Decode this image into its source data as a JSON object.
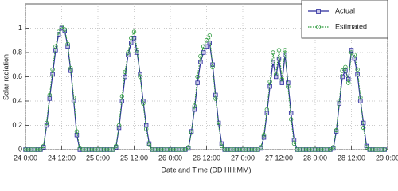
{
  "chart_data": {
    "type": "line",
    "xlabel": "Date and Time (DD HH:MM)",
    "ylabel": "Solar radiation",
    "x": [
      0,
      1,
      2,
      3,
      4,
      5,
      6,
      7,
      8,
      9,
      10,
      11,
      12,
      13,
      14,
      15,
      16,
      17,
      18,
      19,
      20,
      21,
      22,
      23,
      24,
      25,
      26,
      27,
      28,
      29,
      30,
      31,
      32,
      33,
      34,
      35,
      36,
      37,
      38,
      39,
      40,
      41,
      42,
      43,
      44,
      45,
      46,
      47,
      48,
      49,
      50,
      51,
      52,
      53,
      54,
      55,
      56,
      57,
      58,
      59,
      60,
      61,
      62,
      63,
      64,
      65,
      66,
      67,
      68,
      69,
      70,
      71,
      72,
      73,
      74,
      75,
      76,
      77,
      78,
      79,
      80,
      81,
      82,
      83,
      84,
      85,
      86,
      87,
      88,
      89,
      90,
      91,
      92,
      93,
      94,
      95,
      96,
      97,
      98,
      99,
      100,
      101,
      102,
      103,
      104,
      105,
      106,
      107,
      108,
      109,
      110,
      111,
      112,
      113,
      114,
      115,
      116,
      117,
      118,
      119
    ],
    "series": [
      {
        "name": "Actual",
        "color": "#2b2b9c",
        "marker": "square",
        "dash": "solid",
        "values": [
          0,
          0,
          0,
          0,
          0,
          0,
          0.02,
          0.2,
          0.42,
          0.62,
          0.82,
          0.95,
          1.0,
          0.98,
          0.85,
          0.65,
          0.4,
          0.12,
          0,
          0,
          0,
          0,
          0,
          0,
          0,
          0,
          0,
          0,
          0,
          0,
          0.02,
          0.18,
          0.4,
          0.6,
          0.78,
          0.88,
          0.92,
          0.8,
          0.62,
          0.4,
          0.2,
          0.05,
          0,
          0,
          0,
          0,
          0,
          0,
          0,
          0,
          0,
          0,
          0,
          0,
          0.01,
          0.15,
          0.33,
          0.55,
          0.72,
          0.8,
          0.85,
          0.88,
          0.7,
          0.45,
          0.22,
          0.05,
          0,
          0,
          0,
          0,
          0,
          0,
          0,
          0,
          0,
          0,
          0,
          0,
          0.01,
          0.1,
          0.3,
          0.52,
          0.72,
          0.6,
          0.75,
          0.55,
          0.78,
          0.55,
          0.3,
          0.08,
          0,
          0,
          0,
          0,
          0,
          0,
          0,
          0,
          0,
          0,
          0,
          0,
          0.01,
          0.15,
          0.38,
          0.6,
          0.65,
          0.58,
          0.82,
          0.75,
          0.62,
          0.4,
          0.22,
          0.03,
          0,
          0,
          0,
          0,
          0,
          0
        ]
      },
      {
        "name": "Estimated",
        "color": "#2e9b3e",
        "marker": "circle",
        "dash": "dotted",
        "values": [
          0,
          0,
          0,
          0,
          0,
          0,
          0.03,
          0.22,
          0.45,
          0.66,
          0.85,
          0.97,
          1.01,
          0.99,
          0.87,
          0.67,
          0.43,
          0.15,
          0.01,
          0,
          0,
          0,
          0,
          0,
          0,
          0,
          0,
          0,
          0,
          0,
          0.03,
          0.2,
          0.44,
          0.64,
          0.8,
          0.92,
          0.97,
          0.82,
          0.6,
          0.38,
          0.17,
          0.04,
          0,
          0,
          0,
          0,
          0,
          0,
          0,
          0,
          0,
          0,
          0,
          0,
          0.02,
          0.14,
          0.36,
          0.6,
          0.77,
          0.85,
          0.9,
          0.94,
          0.68,
          0.42,
          0.2,
          0.03,
          0,
          0,
          0,
          0,
          0,
          0,
          0,
          0,
          0,
          0,
          0,
          0,
          0.02,
          0.12,
          0.33,
          0.56,
          0.8,
          0.62,
          0.82,
          0.58,
          0.82,
          0.52,
          0.25,
          0.05,
          0,
          0,
          0,
          0,
          0,
          0,
          0,
          0,
          0,
          0,
          0,
          0,
          0.02,
          0.16,
          0.4,
          0.65,
          0.68,
          0.55,
          0.8,
          0.78,
          0.66,
          0.43,
          0.18,
          0.02,
          0,
          0,
          0,
          0,
          0,
          0
        ]
      }
    ],
    "xlim": [
      0,
      120
    ],
    "xticks": [
      {
        "value": 0,
        "label": "24 0:00"
      },
      {
        "value": 12,
        "label": "24 12:00"
      },
      {
        "value": 24,
        "label": "25 0:00"
      },
      {
        "value": 36,
        "label": "25 12:00"
      },
      {
        "value": 48,
        "label": "26 0:00"
      },
      {
        "value": 60,
        "label": "26 12:00"
      },
      {
        "value": 72,
        "label": "27 0:00"
      },
      {
        "value": 84,
        "label": "27 12:00"
      },
      {
        "value": 96,
        "label": "28 0:00"
      },
      {
        "value": 108,
        "label": "28 12:00"
      },
      {
        "value": 120,
        "label": "29 0:00"
      }
    ],
    "ylim": [
      0,
      1.2
    ],
    "yticks": [
      0,
      0.2,
      0.4,
      0.6,
      0.8,
      1
    ],
    "grid": true,
    "legend": "upper right"
  }
}
